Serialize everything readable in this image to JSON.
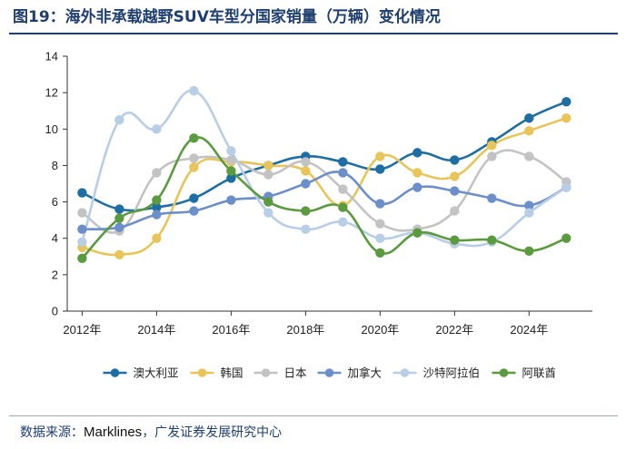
{
  "figure": {
    "title": "图19：海外非承载越野SUV车型分国家销量（万辆）变化情况",
    "source_label": "数据来源：",
    "source_brand": "Marklines",
    "source_tail": "，广发证券发展研究中心"
  },
  "chart_data": {
    "type": "line",
    "title": "海外非承载越野SUV车型分国家销量（万辆）变化情况",
    "unit": "万辆",
    "x": [
      2012,
      2013,
      2014,
      2015,
      2016,
      2017,
      2018,
      2019,
      2020,
      2021,
      2022,
      2023,
      2024,
      2025
    ],
    "x_ticks": [
      {
        "value": 2012,
        "label": "2012年"
      },
      {
        "value": 2014,
        "label": "2014年"
      },
      {
        "value": 2016,
        "label": "2016年"
      },
      {
        "value": 2018,
        "label": "2018年"
      },
      {
        "value": 2020,
        "label": "2020年"
      },
      {
        "value": 2022,
        "label": "2022年"
      },
      {
        "value": 2024,
        "label": "2024年"
      }
    ],
    "xlim": [
      2011.6,
      2025.7
    ],
    "ylim": [
      0,
      14
    ],
    "y_ticks": [
      0,
      2,
      4,
      6,
      8,
      10,
      12,
      14
    ],
    "grid": false,
    "legend_position": "bottom",
    "series": [
      {
        "name": "澳大利亚",
        "color": "#1f6ea3",
        "values": [
          6.5,
          5.6,
          5.7,
          6.2,
          7.3,
          8.0,
          8.5,
          8.2,
          7.8,
          8.7,
          8.3,
          9.3,
          10.6,
          11.5
        ]
      },
      {
        "name": "韩国",
        "color": "#e8c55a",
        "values": [
          3.5,
          3.1,
          4.0,
          7.9,
          8.2,
          8.0,
          7.7,
          5.8,
          8.5,
          7.6,
          7.4,
          9.1,
          9.9,
          10.6
        ]
      },
      {
        "name": "日本",
        "color": "#c3c3c3",
        "values": [
          5.4,
          4.4,
          7.6,
          8.4,
          8.3,
          7.5,
          8.2,
          6.7,
          4.8,
          4.5,
          5.5,
          8.5,
          8.5,
          7.1
        ]
      },
      {
        "name": "加拿大",
        "color": "#6d8fc9",
        "values": [
          4.5,
          4.6,
          5.3,
          5.5,
          6.1,
          6.3,
          7.0,
          7.6,
          5.9,
          6.8,
          6.6,
          6.2,
          5.8,
          6.8
        ]
      },
      {
        "name": "沙特阿拉伯",
        "color": "#b8cde6",
        "values": [
          3.8,
          10.5,
          10.0,
          12.1,
          8.8,
          5.4,
          4.5,
          4.9,
          4.0,
          4.3,
          3.7,
          3.8,
          5.4,
          6.8
        ]
      },
      {
        "name": "阿联酋",
        "color": "#5b9a3f",
        "values": [
          2.9,
          5.1,
          6.1,
          9.5,
          7.7,
          6.0,
          5.5,
          5.7,
          3.2,
          4.3,
          3.9,
          3.9,
          3.3,
          4.0
        ]
      }
    ]
  }
}
